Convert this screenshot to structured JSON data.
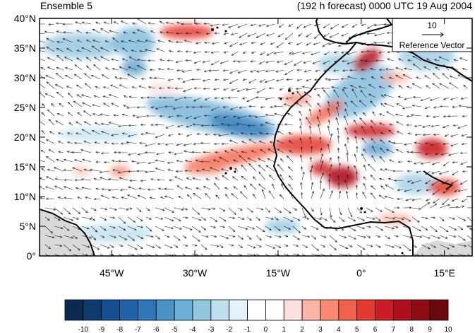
{
  "header": {
    "left_title": "Ensemble 5",
    "right_title": "(192 h forecast) 0000 UTC 19 Aug 2004"
  },
  "map": {
    "lat_range": [
      0,
      40
    ],
    "lon_range": [
      -58,
      20
    ],
    "lat_ticks": [
      {
        "value": 0,
        "label": "0°"
      },
      {
        "value": 5,
        "label": "5°N"
      },
      {
        "value": 10,
        "label": "10°N"
      },
      {
        "value": 15,
        "label": "15°N"
      },
      {
        "value": 20,
        "label": "20°N"
      },
      {
        "value": 25,
        "label": "25°N"
      },
      {
        "value": 30,
        "label": "30°N"
      },
      {
        "value": 35,
        "label": "35°N"
      },
      {
        "value": 40,
        "label": "40°N"
      }
    ],
    "lon_ticks": [
      {
        "value": -45,
        "label": "45°W"
      },
      {
        "value": -30,
        "label": "30°W"
      },
      {
        "value": -15,
        "label": "15°W"
      },
      {
        "value": 0,
        "label": "0°"
      },
      {
        "value": 15,
        "label": "15°E"
      }
    ]
  },
  "reference_vector": {
    "magnitude": "10",
    "label": "Reference Vector"
  },
  "colorbar": {
    "labels": [
      "-10",
      "-9",
      "-8",
      "-7",
      "-6",
      "-5",
      "-4",
      "-3",
      "-2",
      "-1",
      "0",
      "1",
      "2",
      "3",
      "4",
      "5",
      "6",
      "7",
      "8",
      "9",
      "10"
    ],
    "colors": [
      "#0b2a4f",
      "#0e3a6e",
      "#154f90",
      "#1f63a6",
      "#2e76b6",
      "#4a93c6",
      "#6baed6",
      "#93c6df",
      "#bfe0ee",
      "#e4f3fa",
      "#ffffff",
      "#ffffff",
      "#fde0e0",
      "#fbb4a6",
      "#f88a72",
      "#f2614b",
      "#e4392f",
      "#cc1c24",
      "#b00f1e",
      "#8e0c16",
      "#680a0c"
    ]
  }
}
